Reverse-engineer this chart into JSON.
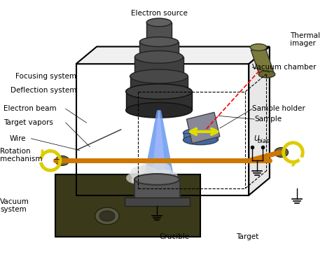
{
  "title": "",
  "bg_color": "#ffffff",
  "labels": {
    "electron_source": "Electron source",
    "focusing_system": "Focusing system",
    "deflection_system": "Deflection system",
    "electron_beam": "Electron beam",
    "target_vapors": "Target vapors",
    "wire": "Wire",
    "rotation_mechanism": "Rotation\nmechanism",
    "vacuum_system": "Vacuum\nsystem",
    "thermal_imager": "Thermal\nimager",
    "vacuum_chamber": "Vacuum chamber",
    "sample_holder": "Sample holder",
    "sample": "Sample",
    "u_bias": "U",
    "u_bias_sub": "bias",
    "crucible": "Crucible",
    "target": "Target"
  },
  "colors": {
    "box_edge": "#000000",
    "orange_rod": "#cc7700",
    "olive": "#6b6b2a",
    "dark_box": "#3a3a1a"
  }
}
